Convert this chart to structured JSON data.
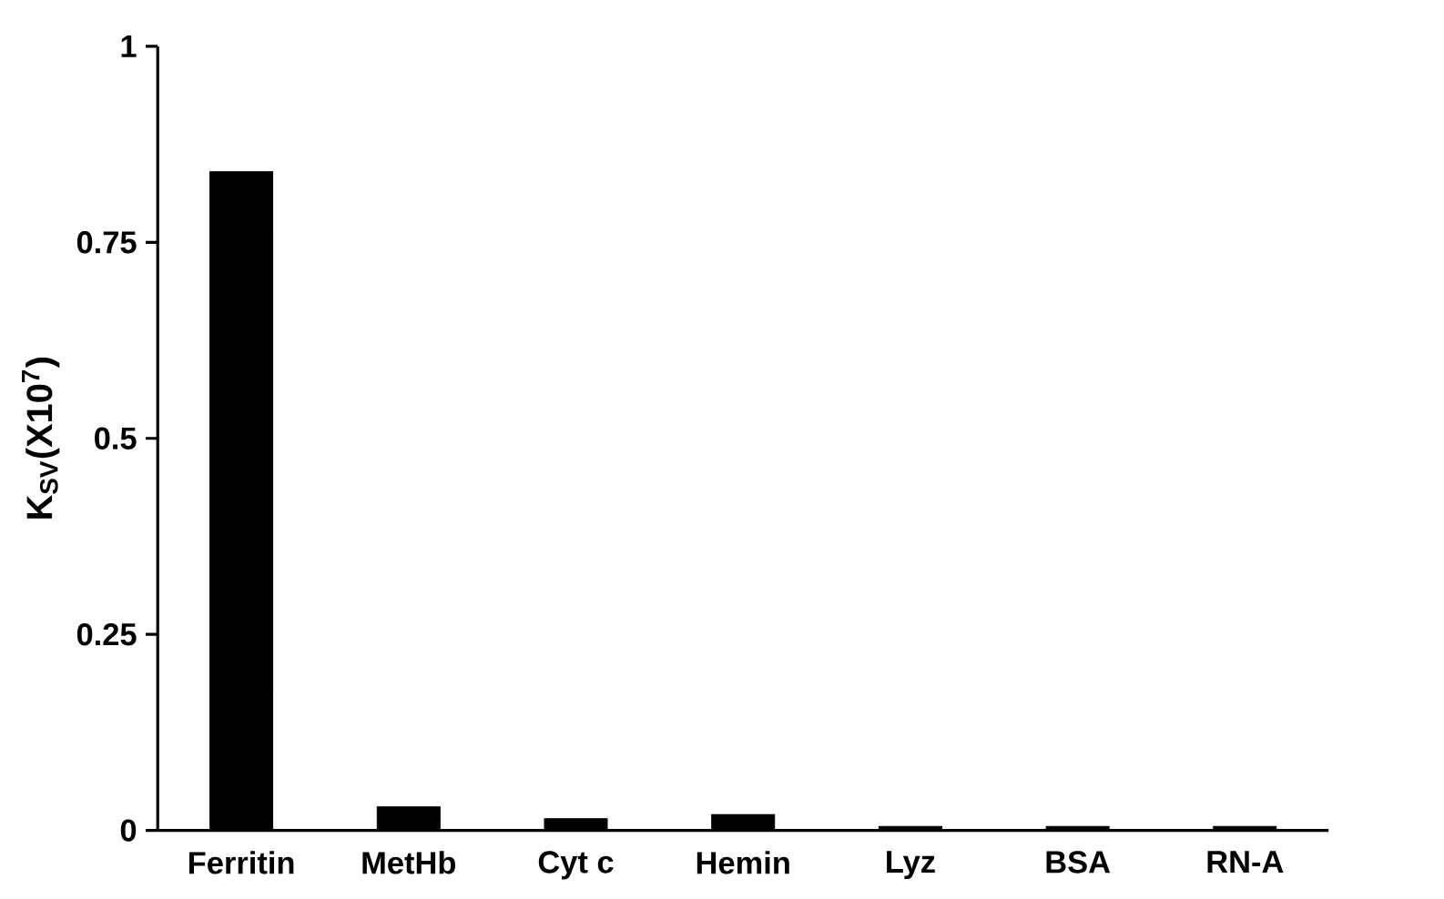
{
  "chart_data": {
    "type": "bar",
    "ylabel": "K$_{SV}$(X10$^{7}$)",
    "categories": [
      "Ferritin",
      "MetHb",
      "Cyt c",
      "Hemin",
      "Lyz",
      "BSA",
      "RN-A"
    ],
    "values": [
      0.84,
      0.03,
      0.015,
      0.02,
      0.005,
      0.005,
      0.005
    ],
    "color": "#000000",
    "ylim": [
      0,
      1
    ],
    "yticks": [
      0,
      0.25,
      0.5,
      0.75,
      1
    ]
  }
}
